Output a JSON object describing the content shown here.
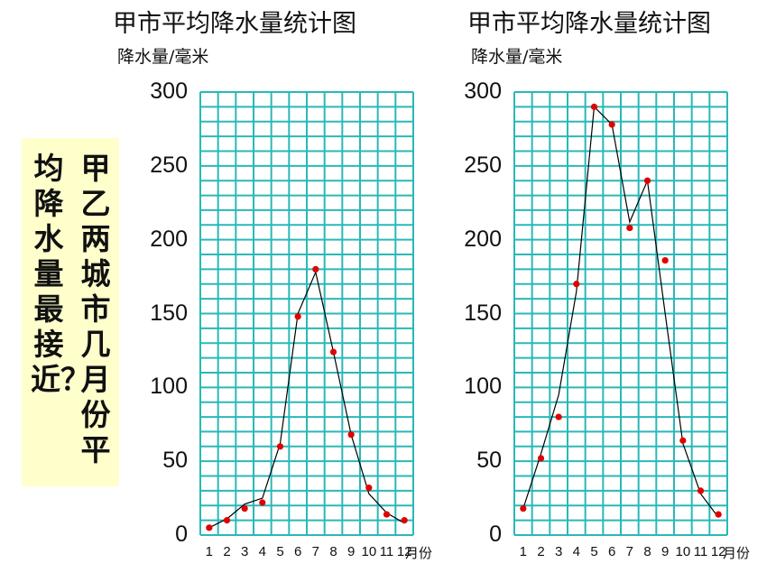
{
  "question": {
    "col1": "甲乙两城市几月份平",
    "col2": "均降水量最接近？"
  },
  "chart_data": [
    {
      "type": "line",
      "title": "甲市平均降水量统计图",
      "ylabel": "降水量/毫米",
      "xlabel": "月份",
      "ylim": [
        0,
        300
      ],
      "x_ticks": [
        "1",
        "2",
        "3",
        "4",
        "5",
        "6",
        "7",
        "8",
        "9",
        "10",
        "11",
        "12"
      ],
      "y_ticks": [
        "0",
        "50",
        "100",
        "150",
        "200",
        "250",
        "300"
      ],
      "grid": true,
      "line_color": "#000000",
      "grid_color": "#2ab8b8",
      "series": [
        {
          "kind": "line",
          "x": [
            1,
            2,
            3,
            4,
            5,
            6,
            7,
            8,
            9,
            10,
            11,
            12
          ],
          "values": [
            5,
            11,
            21,
            25,
            62,
            150,
            178,
            124,
            68,
            28,
            15,
            8
          ]
        },
        {
          "kind": "points",
          "color": "#e00000",
          "x": [
            1,
            2,
            3,
            4,
            5,
            6,
            7,
            8,
            9,
            10,
            11,
            12
          ],
          "values": [
            5,
            10,
            18,
            22,
            60,
            148,
            180,
            124,
            68,
            32,
            14,
            10
          ]
        }
      ]
    },
    {
      "type": "line",
      "title": "甲市平均降水量统计图",
      "ylabel": "降水量/毫米",
      "xlabel": "月份",
      "ylim": [
        0,
        300
      ],
      "x_ticks": [
        "1",
        "2",
        "3",
        "4",
        "5",
        "6",
        "7",
        "8",
        "9",
        "10",
        "11",
        "12"
      ],
      "y_ticks": [
        "0",
        "50",
        "100",
        "150",
        "200",
        "250",
        "300"
      ],
      "grid": true,
      "line_color": "#000000",
      "grid_color": "#2ab8b8",
      "series": [
        {
          "kind": "line",
          "x": [
            1,
            2,
            3,
            4,
            5,
            6,
            7,
            8,
            9,
            10,
            11,
            12
          ],
          "values": [
            18,
            55,
            95,
            165,
            290,
            278,
            212,
            240,
            150,
            62,
            28,
            12
          ]
        },
        {
          "kind": "points",
          "color": "#e00000",
          "x": [
            1,
            2,
            3,
            4,
            5,
            6,
            7,
            8,
            9,
            10,
            11,
            12
          ],
          "values": [
            18,
            52,
            80,
            170,
            290,
            278,
            208,
            240,
            186,
            64,
            30,
            14
          ]
        }
      ]
    }
  ]
}
